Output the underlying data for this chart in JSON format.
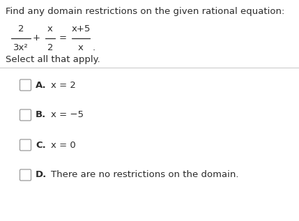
{
  "title": "Find any domain restrictions on the given rational equation:",
  "eq_frac1_num": "2",
  "eq_frac1_den": "3x²",
  "eq_plus": "+",
  "eq_frac2_num": "x",
  "eq_frac2_den": "2",
  "eq_equals": "=",
  "eq_frac3_num": "x+5",
  "eq_frac3_den": "x",
  "eq_period": ".",
  "subtitle": "Select all that apply.",
  "options": [
    {
      "label": "A.",
      "text": "x = 2"
    },
    {
      "label": "B.",
      "text": "x = −5"
    },
    {
      "label": "C.",
      "text": "x = 0"
    },
    {
      "label": "D.",
      "text": "There are no restrictions on the domain."
    }
  ],
  "bg_color": "#ffffff",
  "text_color": "#2b2b2b",
  "separator_color": "#cccccc",
  "checkbox_edge_color": "#999999",
  "title_fontsize": 9.5,
  "subtitle_fontsize": 9.5,
  "eq_fontsize": 9.5,
  "option_fontsize": 9.5,
  "option_label_fontsize": 9.5
}
